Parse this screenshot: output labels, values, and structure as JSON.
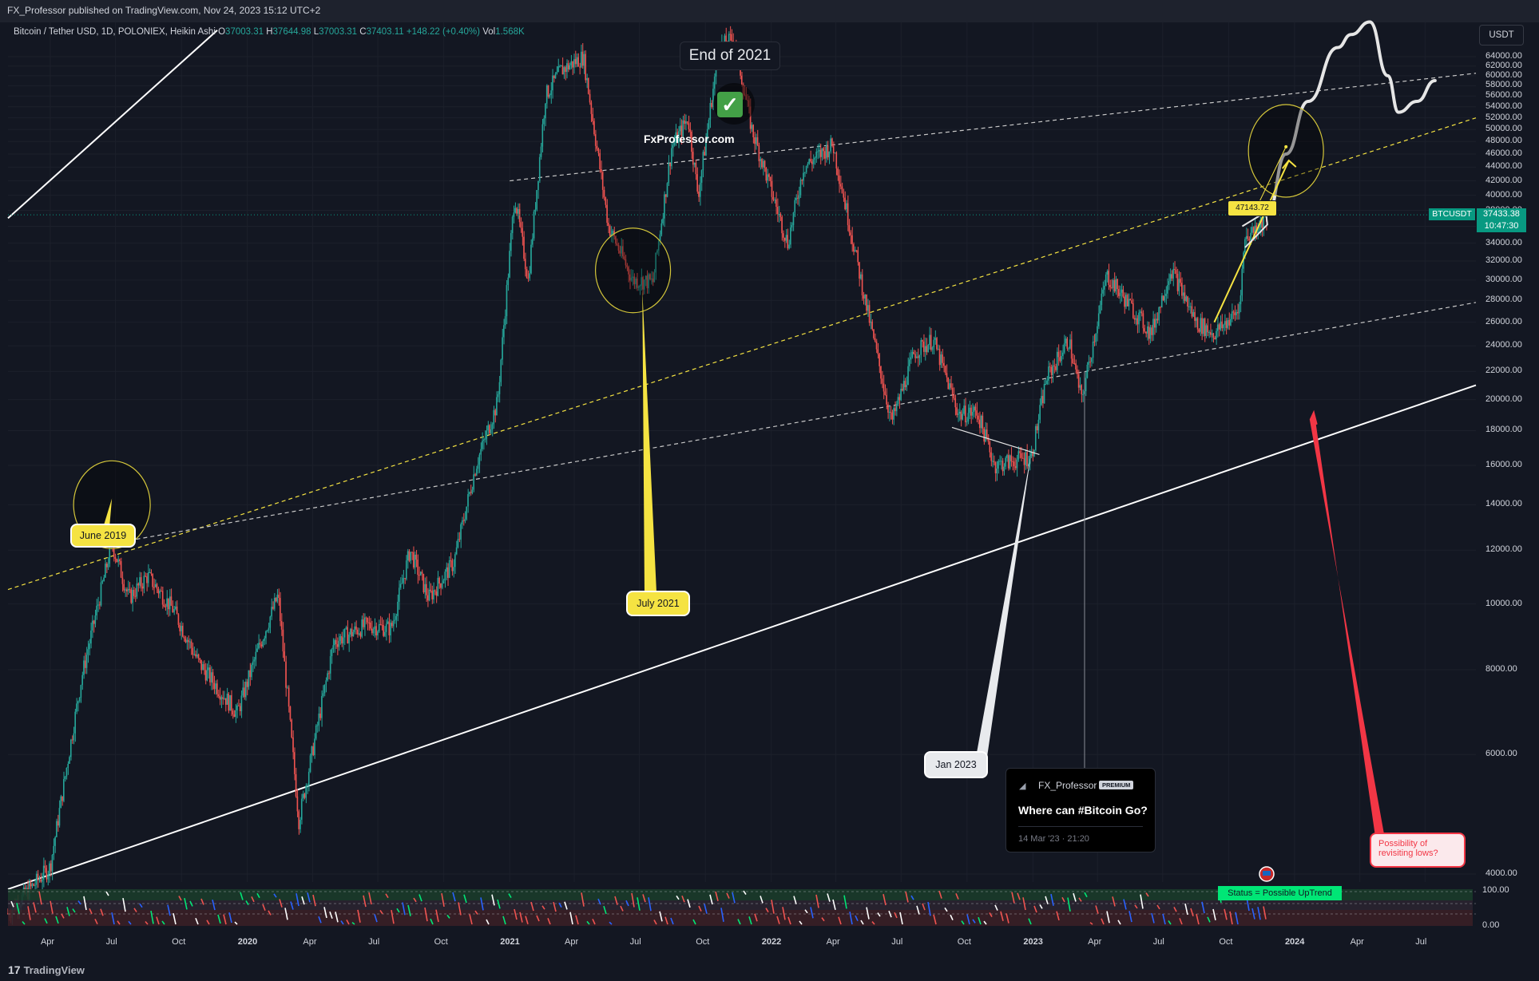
{
  "header": {
    "publish_line": "FX_Professor published on TradingView.com, Nov 24, 2023 15:12 UTC+2"
  },
  "legend": {
    "symbol": "Bitcoin / Tether USD, 1D, POLONIEX, Heikin Ashi",
    "o_label": "O",
    "o_val": "37003.31",
    "h_label": "H",
    "h_val": "37644.98",
    "l_label": "L",
    "l_val": "37003.31",
    "c_label": "C",
    "c_val": "37403.11",
    "change": "+148.22 (+0.40%)",
    "vol_label": "Vol",
    "vol_val": "1.568K"
  },
  "currency_button": "USDT",
  "price_tag": {
    "symbol": "BTCUSDT",
    "price": "37433.38",
    "countdown": "10:47:30"
  },
  "annotations": {
    "end_of_2021": "End of 2021",
    "check_mark": "✓",
    "fxprofessor": "FxProfessor.com",
    "june_2019": "June 2019",
    "july_2021": "July 2021",
    "jan_2023": "Jan 2023",
    "target_value": "47143.72",
    "possibility": "Possibility of revisiting lows?",
    "status": "Status = Possible UpTrend"
  },
  "idea_card": {
    "author": "FX_Professor",
    "badge": "PREMIUM",
    "title": "Where can #Bitcoin Go?",
    "date": "14 Mar '23 · 21:20"
  },
  "oscillator": {
    "upper": "100.00",
    "lower": "0.00"
  },
  "footer": {
    "brand": "TradingView",
    "logo_glyph": "17"
  },
  "colors": {
    "background": "#131722",
    "bull": "#26a69a",
    "bear": "#ef5350",
    "accent_yellow": "#f5e342",
    "price_tag": "#089981"
  },
  "chart_data": {
    "type": "candlestick",
    "title": "Bitcoin / Tether USD, 1D, POLONIEX, Heikin Ashi",
    "y_scale": "log",
    "ylim": [
      3700,
      70000
    ],
    "y_ticks": [
      "64000.00",
      "62000.00",
      "60000.00",
      "58000.00",
      "56000.00",
      "54000.00",
      "52000.00",
      "50000.00",
      "48000.00",
      "46000.00",
      "44000.00",
      "42000.00",
      "40000.00",
      "38000.00",
      "36000.00",
      "34000.00",
      "32000.00",
      "30000.00",
      "28000.00",
      "26000.00",
      "24000.00",
      "22000.00",
      "20000.00",
      "18000.00",
      "16000.00",
      "14000.00",
      "12000.00",
      "10000.00",
      "8000.00",
      "6000.00",
      "4000.00"
    ],
    "x_ticks": [
      "Apr",
      "Jul",
      "Oct",
      "2020",
      "Apr",
      "Jul",
      "Oct",
      "2021",
      "Apr",
      "Jul",
      "Oct",
      "2022",
      "Apr",
      "Jul",
      "Oct",
      "2023",
      "Apr",
      "Jul",
      "Oct",
      "2024",
      "Apr",
      "Jul"
    ],
    "x_range": [
      "2019-02-01",
      "2024-09-10"
    ],
    "series": [
      {
        "name": "BTCUSDT",
        "points": [
          [
            "2019-02-01",
            3500
          ],
          [
            "2019-04-01",
            4100
          ],
          [
            "2019-05-15",
            7800
          ],
          [
            "2019-06-26",
            12300
          ],
          [
            "2019-07-20",
            10200
          ],
          [
            "2019-08-15",
            11000
          ],
          [
            "2019-09-20",
            9800
          ],
          [
            "2019-10-25",
            8200
          ],
          [
            "2019-12-18",
            6900
          ],
          [
            "2020-01-15",
            8500
          ],
          [
            "2020-02-13",
            10300
          ],
          [
            "2020-03-13",
            4800
          ],
          [
            "2020-05-01",
            8800
          ],
          [
            "2020-06-15",
            9300
          ],
          [
            "2020-07-20",
            9200
          ],
          [
            "2020-08-15",
            12000
          ],
          [
            "2020-09-10",
            10200
          ],
          [
            "2020-10-15",
            11500
          ],
          [
            "2020-11-15",
            16000
          ],
          [
            "2020-12-15",
            19800
          ],
          [
            "2021-01-08",
            40000
          ],
          [
            "2021-01-27",
            30000
          ],
          [
            "2021-02-20",
            56000
          ],
          [
            "2021-03-13",
            61000
          ],
          [
            "2021-04-14",
            64000
          ],
          [
            "2021-05-19",
            36000
          ],
          [
            "2021-06-22",
            30000
          ],
          [
            "2021-07-20",
            29800
          ],
          [
            "2021-08-15",
            47000
          ],
          [
            "2021-09-07",
            52000
          ],
          [
            "2021-09-21",
            40000
          ],
          [
            "2021-10-20",
            66000
          ],
          [
            "2021-11-10",
            68000
          ],
          [
            "2021-12-05",
            50000
          ],
          [
            "2022-01-24",
            34000
          ],
          [
            "2022-02-15",
            44000
          ],
          [
            "2022-03-28",
            47500
          ],
          [
            "2022-05-12",
            28000
          ],
          [
            "2022-06-18",
            18500
          ],
          [
            "2022-07-20",
            23500
          ],
          [
            "2022-08-15",
            24500
          ],
          [
            "2022-09-20",
            19000
          ],
          [
            "2022-10-15",
            19200
          ],
          [
            "2022-11-09",
            16000
          ],
          [
            "2022-12-30",
            16500
          ],
          [
            "2023-01-20",
            21500
          ],
          [
            "2023-02-20",
            24500
          ],
          [
            "2023-03-10",
            20000
          ],
          [
            "2023-04-14",
            30500
          ],
          [
            "2023-06-15",
            25000
          ],
          [
            "2023-07-13",
            31200
          ],
          [
            "2023-08-17",
            26000
          ],
          [
            "2023-09-11",
            25000
          ],
          [
            "2023-10-15",
            27000
          ],
          [
            "2023-10-24",
            34500
          ],
          [
            "2023-11-24",
            37433
          ]
        ]
      }
    ],
    "projection": [
      [
        "2023-11-24",
        37433
      ],
      [
        "2023-12-20",
        46000
      ],
      [
        "2024-01-20",
        55000
      ],
      [
        "2024-03-01",
        66000
      ],
      [
        "2024-03-20",
        69000
      ],
      [
        "2024-04-15",
        72000
      ],
      [
        "2024-05-10",
        60000
      ],
      [
        "2024-05-25",
        53000
      ],
      [
        "2024-06-20",
        55000
      ],
      [
        "2024-07-15",
        59000
      ]
    ],
    "trendlines": [
      {
        "style": "solid",
        "color": "#ffffff",
        "points": [
          [
            "2019-02-01",
            37000
          ],
          [
            "2019-11-20",
            70000
          ]
        ]
      },
      {
        "style": "solid",
        "color": "#ffffff",
        "points": [
          [
            "2019-02-01",
            3800
          ],
          [
            "2024-09-10",
            21000
          ]
        ]
      },
      {
        "style": "dashed",
        "color": "#f5e342",
        "points": [
          [
            "2019-02-01",
            10500
          ],
          [
            "2024-09-10",
            52000
          ]
        ]
      },
      {
        "style": "dashed",
        "color": "#c8c8c8",
        "points": [
          [
            "2019-07-20",
            12400
          ],
          [
            "2024-09-10",
            27800
          ]
        ]
      },
      {
        "style": "dashed",
        "color": "#c8c8c8",
        "points": [
          [
            "2021-01-01",
            42000
          ],
          [
            "2024-09-10",
            60500
          ]
        ]
      }
    ]
  }
}
